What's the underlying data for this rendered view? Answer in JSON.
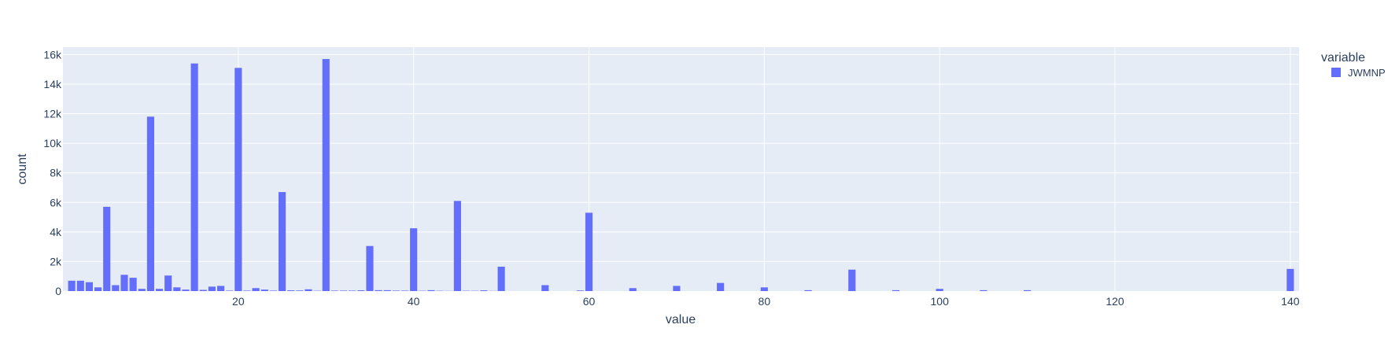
{
  "chart_data": {
    "type": "bar",
    "xlabel": "value",
    "ylabel": "count",
    "xlim": [
      0,
      141
    ],
    "ylim": [
      0,
      16500
    ],
    "bin_width": 1,
    "grid": true,
    "legend_position": "top-right",
    "legend_title": "variable",
    "x_ticks": [
      20,
      40,
      60,
      80,
      100,
      120,
      140
    ],
    "x_tick_labels": [
      "20",
      "40",
      "60",
      "80",
      "100",
      "120",
      "140"
    ],
    "y_ticks": [
      0,
      2000,
      4000,
      6000,
      8000,
      10000,
      12000,
      14000,
      16000
    ],
    "y_tick_labels": [
      "0",
      "2k",
      "4k",
      "6k",
      "8k",
      "10k",
      "12k",
      "14k",
      "16k"
    ],
    "colors": {
      "bar": "#636efa",
      "plot_bg": "#e5ecf6",
      "grid": "#ffffff",
      "text": "#2a3f5f"
    },
    "series": [
      {
        "name": "JWMNP",
        "x": [
          1,
          2,
          3,
          4,
          5,
          6,
          7,
          8,
          9,
          10,
          11,
          12,
          13,
          14,
          15,
          16,
          17,
          18,
          19,
          20,
          21,
          22,
          23,
          24,
          25,
          26,
          27,
          28,
          29,
          30,
          31,
          32,
          33,
          34,
          35,
          36,
          37,
          38,
          39,
          40,
          41,
          42,
          43,
          44,
          45,
          46,
          47,
          48,
          49,
          50,
          55,
          59,
          60,
          65,
          70,
          75,
          80,
          85,
          90,
          95,
          100,
          105,
          110,
          140
        ],
        "values": [
          700,
          700,
          600,
          250,
          5700,
          400,
          1100,
          900,
          150,
          11800,
          150,
          1050,
          250,
          100,
          15400,
          80,
          300,
          350,
          30,
          15100,
          30,
          200,
          100,
          30,
          6700,
          50,
          40,
          120,
          20,
          15700,
          30,
          30,
          30,
          50,
          3050,
          60,
          60,
          30,
          30,
          4250,
          20,
          60,
          20,
          10,
          6100,
          20,
          20,
          50,
          10,
          1650,
          400,
          40,
          5300,
          200,
          350,
          550,
          250,
          60,
          1450,
          60,
          150,
          60,
          60,
          1500
        ]
      }
    ]
  }
}
